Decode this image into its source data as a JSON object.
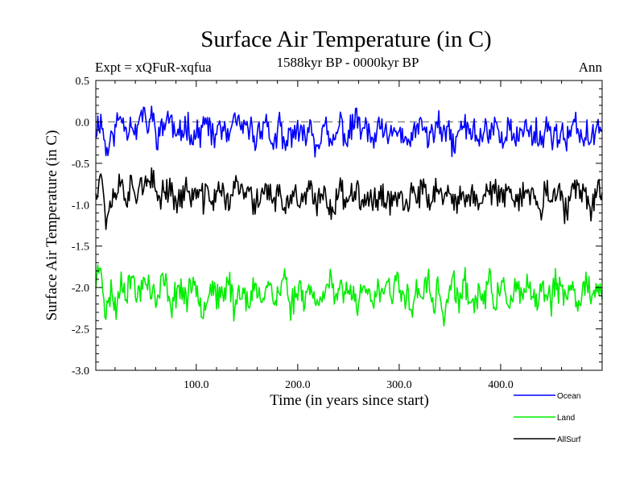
{
  "chart_data": {
    "type": "line",
    "title": "Surface Air Temperature (in C)",
    "subtitle": "1588kyr BP - 0000kyr BP",
    "experiment_label": "Expt = xQFuR-xqfua",
    "season_label": "Ann",
    "xlabel": "Time (in years since start)",
    "ylabel": "Surface Air Temperature (in C)",
    "xlim": [
      1,
      500
    ],
    "ylim": [
      -3.0,
      0.5
    ],
    "x_ticks": [
      100,
      200,
      300,
      400
    ],
    "x_tick_labels": [
      "100.0",
      "200.0",
      "300.0",
      "400.0"
    ],
    "y_ticks": [
      0.5,
      0.0,
      -0.5,
      -1.0,
      -1.5,
      -2.0,
      -2.5,
      -3.0
    ],
    "y_tick_labels": [
      "0.5",
      "0.0",
      "-0.5",
      "-1.0",
      "-1.5",
      "-2.0",
      "-2.5",
      "-3.0"
    ],
    "reference_line": 0.0,
    "legend_position": "bottom-right, below plot",
    "series": [
      {
        "name": "Ocean",
        "color": "#0000ff",
        "mean": -0.18,
        "anomalies": [
          0.1,
          0.25,
          -0.18,
          -0.05,
          0.15,
          0.3,
          0.1,
          0.22,
          0.05,
          0.35,
          0.12,
          0.28,
          0.02,
          0.08,
          0.3,
          0.15,
          -0.05,
          0.1,
          0.18,
          0.0,
          0.05,
          0.12,
          0.2,
          -0.1,
          0.18,
          0.05,
          -0.02,
          0.15,
          0.22,
          0.02,
          0.18,
          -0.05,
          0.08,
          0.25,
          0.0,
          -0.1,
          0.15,
          -0.2,
          0.05,
          0.1,
          -0.05,
          0.08,
          0.18,
          -0.12,
          0.05,
          0.1,
          -0.15,
          0.02,
          0.2,
          -0.05,
          0.1,
          0.28,
          0.05,
          0.12,
          -0.08,
          0.02,
          0.15,
          -0.1,
          0.05,
          0.12,
          0.0,
          -0.18,
          0.1,
          0.05,
          0.18,
          -0.05,
          0.08,
          0.15,
          -0.02,
          0.1,
          -0.15,
          0.05,
          0.2,
          0.0,
          0.12,
          -0.08,
          0.15,
          0.02,
          0.22,
          -0.05,
          0.08,
          0.12,
          -0.12,
          0.05,
          0.18,
          0.0,
          0.1,
          -0.08,
          0.15,
          0.05,
          0.0,
          0.1,
          -0.12,
          0.08,
          0.15,
          -0.02,
          0.05,
          -0.1,
          0.12,
          0.2
        ],
        "noise_seed": 11
      },
      {
        "name": "Land",
        "color": "#00ee00",
        "mean": -2.1,
        "anomalies": [
          0.2,
          0.45,
          -0.3,
          0.1,
          -0.2,
          0.25,
          0.05,
          0.3,
          -0.05,
          0.15,
          0.25,
          0.05,
          -0.1,
          0.2,
          0.1,
          -0.15,
          0.15,
          0.05,
          -0.05,
          0.2,
          0.1,
          -0.2,
          0.05,
          0.15,
          -0.1,
          0.0,
          0.25,
          -0.15,
          0.05,
          0.1,
          -0.2,
          0.15,
          -0.05,
          0.1,
          0.2,
          -0.1,
          0.05,
          0.3,
          -0.15,
          0.0,
          0.15,
          -0.05,
          0.2,
          -0.2,
          0.1,
          0.05,
          0.25,
          -0.15,
          0.1,
          0.0,
          0.15,
          -0.1,
          0.05,
          0.2,
          -0.25,
          0.1,
          0.0,
          0.15,
          -0.05,
          0.25,
          -0.1,
          0.05,
          -0.2,
          0.15,
          0.0,
          0.2,
          -0.15,
          0.1,
          -0.3,
          0.05,
          0.15,
          -0.1,
          0.2,
          0.0,
          -0.15,
          0.1,
          -0.05,
          0.2,
          -0.1,
          0.05,
          0.15,
          -0.2,
          0.1,
          -0.05,
          0.15,
          0.0,
          -0.15,
          0.1,
          0.05,
          -0.1,
          0.2,
          0.0,
          -0.05,
          0.15,
          -0.1,
          0.05,
          0.25,
          -0.05,
          0.1,
          -0.1
        ],
        "noise_seed": 23
      },
      {
        "name": "AllSurf",
        "color": "#000000",
        "mean": -0.95,
        "anomalies": [
          0.15,
          0.4,
          -0.25,
          0.0,
          0.15,
          0.25,
          0.05,
          0.2,
          0.1,
          0.3,
          0.15,
          0.25,
          0.05,
          0.1,
          0.2,
          0.1,
          -0.05,
          0.1,
          0.15,
          0.05,
          0.1,
          0.0,
          0.15,
          -0.05,
          0.2,
          0.05,
          0.0,
          0.15,
          0.2,
          0.05,
          0.15,
          -0.1,
          0.05,
          0.2,
          0.1,
          -0.05,
          0.15,
          -0.25,
          0.05,
          0.1,
          -0.05,
          0.05,
          0.15,
          -0.1,
          0.05,
          0.1,
          -0.15,
          0.05,
          0.15,
          -0.05,
          0.1,
          0.25,
          0.0,
          0.1,
          -0.1,
          0.05,
          0.15,
          -0.05,
          0.05,
          0.1,
          0.0,
          -0.15,
          0.1,
          0.05,
          0.15,
          -0.05,
          0.1,
          0.2,
          -0.05,
          0.1,
          -0.15,
          0.05,
          0.15,
          0.0,
          0.1,
          -0.1,
          0.2,
          0.05,
          0.2,
          -0.05,
          0.1,
          0.15,
          -0.15,
          0.05,
          0.2,
          0.0,
          0.1,
          -0.1,
          0.15,
          0.05,
          0.0,
          0.1,
          -0.2,
          0.05,
          0.2,
          0.0,
          0.05,
          -0.1,
          0.15,
          0.1
        ],
        "noise_seed": 37
      }
    ]
  }
}
